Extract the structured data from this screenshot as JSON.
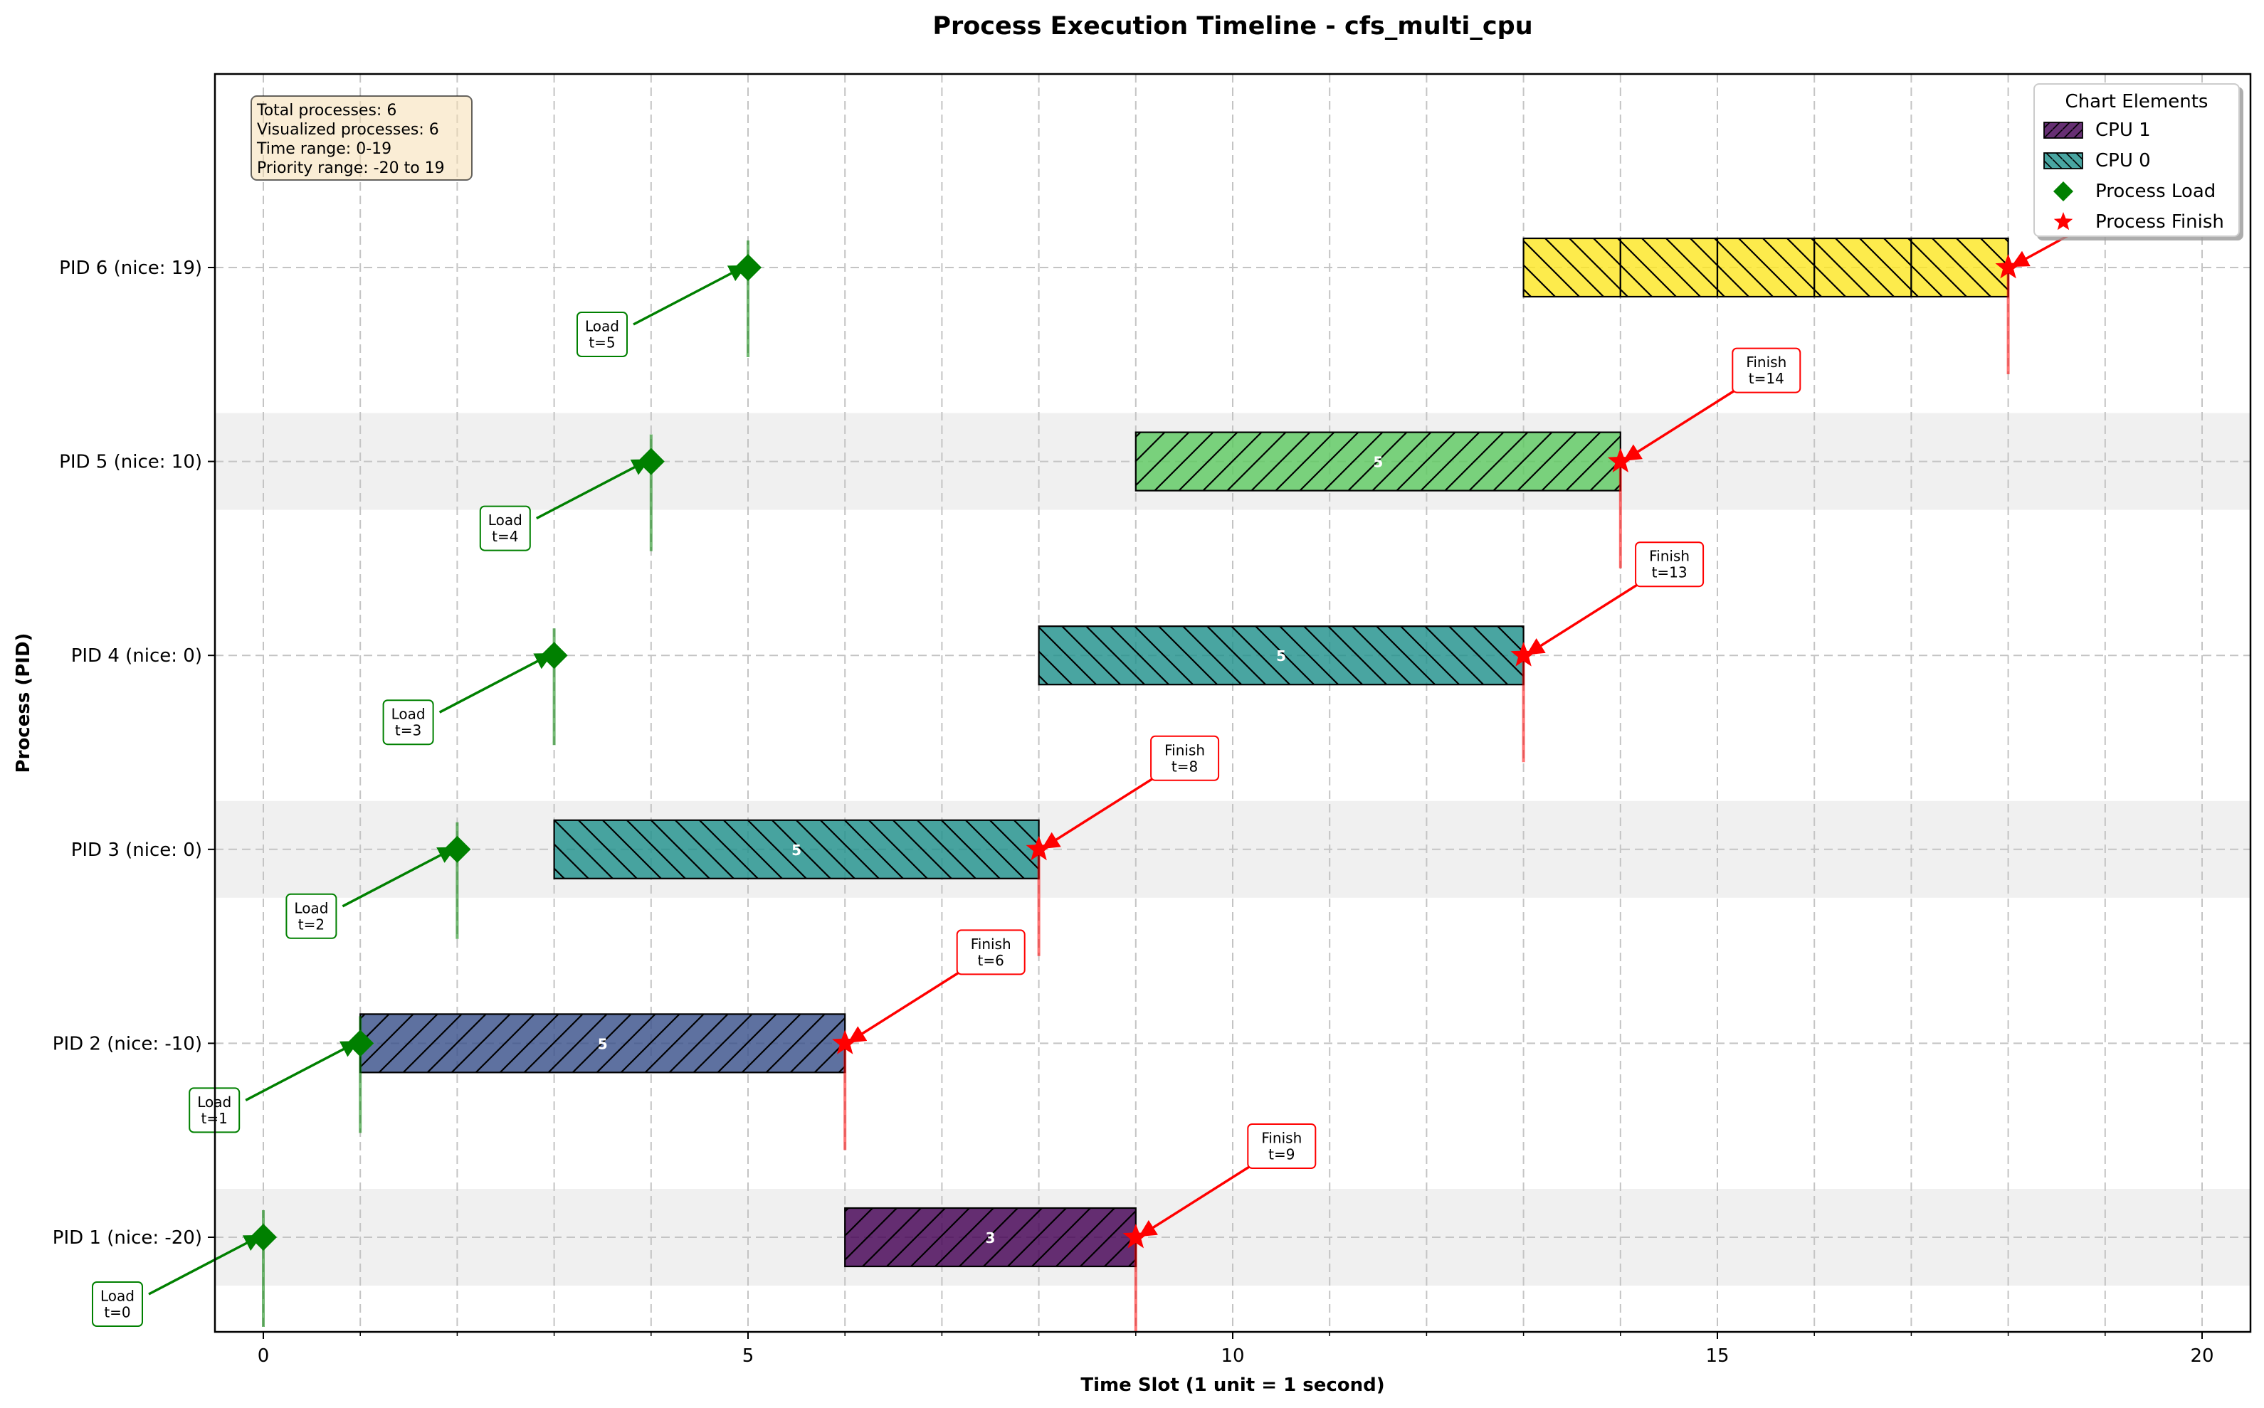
{
  "chart_data": {
    "type": "gantt",
    "title": "Process Execution Timeline - cfs_multi_cpu",
    "xlabel": "Time Slot (1 unit = 1 second)",
    "ylabel": "Process (PID)",
    "xlim": [
      -0.5,
      20.5
    ],
    "x_ticks": [
      0,
      5,
      10,
      15,
      20
    ],
    "x_ticks_minor": [
      1,
      2,
      3,
      4,
      6,
      7,
      8,
      9,
      11,
      12,
      13,
      14,
      16,
      17,
      18,
      19
    ],
    "grid": true,
    "legend_position": "top-right",
    "info_box": [
      "Total processes: 6",
      "Visualized processes: 6",
      "Time range: 0-19",
      "Priority range: -20 to 19"
    ],
    "legend": {
      "title": "Chart Elements",
      "entries": [
        {
          "label": "CPU 1",
          "kind": "cpu1"
        },
        {
          "label": "CPU 0",
          "kind": "cpu0"
        },
        {
          "label": "Process Load",
          "kind": "load"
        },
        {
          "label": "Process Finish",
          "kind": "finish"
        }
      ]
    },
    "processes": [
      {
        "label": "PID 1 (nice: -20)",
        "load": 0,
        "finish": 9,
        "load_label": "Load\nt=0",
        "finish_label": "Finish\nt=9",
        "shaded": true
      },
      {
        "label": "PID 2 (nice: -10)",
        "load": 1,
        "finish": 6,
        "load_label": "Load\nt=1",
        "finish_label": "Finish\nt=6",
        "shaded": false
      },
      {
        "label": "PID 3 (nice: 0)",
        "load": 2,
        "finish": 8,
        "load_label": "Load\nt=2",
        "finish_label": "Finish\nt=8",
        "shaded": true
      },
      {
        "label": "PID 4 (nice: 0)",
        "load": 3,
        "finish": 13,
        "load_label": "Load\nt=3",
        "finish_label": "Finish\nt=13",
        "shaded": false
      },
      {
        "label": "PID 5 (nice: 10)",
        "load": 4,
        "finish": 14,
        "load_label": "Load\nt=4",
        "finish_label": "Finish\nt=14",
        "shaded": true
      },
      {
        "label": "PID 6 (nice: 19)",
        "load": 5,
        "finish": 18,
        "load_label": "Load\nt=5",
        "finish_label": "",
        "shaded": false
      }
    ],
    "segments": [
      {
        "pid_index": 0,
        "start": 6,
        "end": 9,
        "cpu": 1,
        "color": "#440154",
        "hatch": "/",
        "label": "3"
      },
      {
        "pid_index": 1,
        "start": 1,
        "end": 6,
        "cpu": 1,
        "color": "#3b528b",
        "hatch": "/",
        "label": "5"
      },
      {
        "pid_index": 2,
        "start": 3,
        "end": 8,
        "cpu": 0,
        "color": "#21918c",
        "hatch": "\\",
        "label": "5"
      },
      {
        "pid_index": 3,
        "start": 8,
        "end": 13,
        "cpu": 0,
        "color": "#21918c",
        "hatch": "\\",
        "label": "5"
      },
      {
        "pid_index": 4,
        "start": 9,
        "end": 14,
        "cpu": 1,
        "color": "#5ec962",
        "hatch": "/",
        "label": "5"
      },
      {
        "pid_index": 5,
        "start": 13,
        "end": 14,
        "cpu": 0,
        "color": "#fde725",
        "hatch": "\\",
        "label": ""
      },
      {
        "pid_index": 5,
        "start": 14,
        "end": 15,
        "cpu": 0,
        "color": "#fde725",
        "hatch": "\\",
        "label": ""
      },
      {
        "pid_index": 5,
        "start": 15,
        "end": 16,
        "cpu": 0,
        "color": "#fde725",
        "hatch": "\\",
        "label": ""
      },
      {
        "pid_index": 5,
        "start": 16,
        "end": 17,
        "cpu": 0,
        "color": "#fde725",
        "hatch": "\\",
        "label": ""
      },
      {
        "pid_index": 5,
        "start": 17,
        "end": 18,
        "cpu": 0,
        "color": "#fde725",
        "hatch": "\\",
        "label": ""
      }
    ],
    "colors": {
      "cpu1_legend": "#440154",
      "cpu0_legend": "#21918c",
      "load": "#008000",
      "finish": "#ff0000",
      "row_shade": "#f0f0f0",
      "info_box_fill": "#f5deb3"
    }
  }
}
